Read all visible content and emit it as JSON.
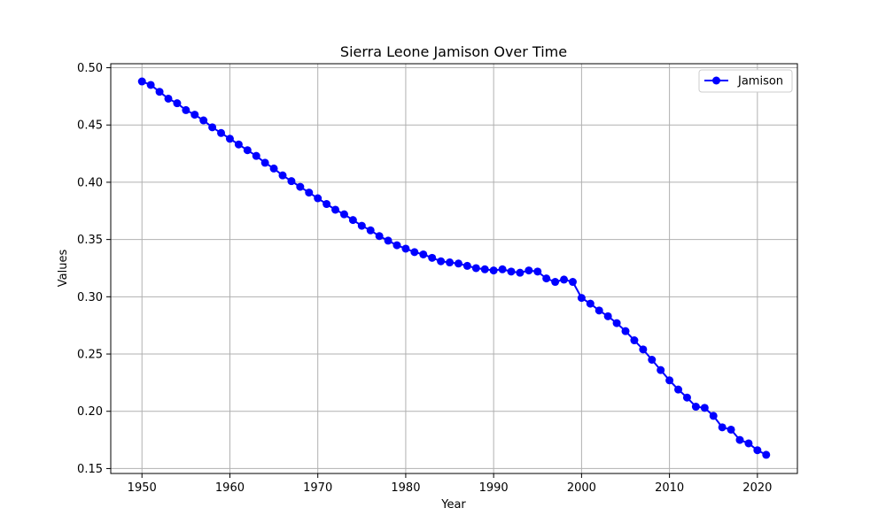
{
  "chart_data": {
    "type": "line",
    "title": "Sierra Leone Jamison Over Time",
    "xlabel": "Year",
    "ylabel": "Values",
    "xlim": [
      1946.45,
      2024.55
    ],
    "ylim": [
      0.1457,
      0.5035
    ],
    "xticks": [
      1950,
      1960,
      1970,
      1980,
      1990,
      2000,
      2010,
      2020
    ],
    "yticks": [
      0.15,
      0.2,
      0.25,
      0.3,
      0.35,
      0.4,
      0.45,
      0.5
    ],
    "ytick_labels": [
      "0.15",
      "0.20",
      "0.25",
      "0.30",
      "0.35",
      "0.40",
      "0.45",
      "0.50"
    ],
    "grid": true,
    "legend": {
      "position": "top-right",
      "entries": [
        "Jamison"
      ]
    },
    "series": [
      {
        "name": "Jamison",
        "color": "#0000ff",
        "marker": "circle",
        "x": [
          1950,
          1951,
          1952,
          1953,
          1954,
          1955,
          1956,
          1957,
          1958,
          1959,
          1960,
          1961,
          1962,
          1963,
          1964,
          1965,
          1966,
          1967,
          1968,
          1969,
          1970,
          1971,
          1972,
          1973,
          1974,
          1975,
          1976,
          1977,
          1978,
          1979,
          1980,
          1981,
          1982,
          1983,
          1984,
          1985,
          1986,
          1987,
          1988,
          1989,
          1990,
          1991,
          1992,
          1993,
          1994,
          1995,
          1996,
          1997,
          1998,
          1999,
          2000,
          2001,
          2002,
          2003,
          2004,
          2005,
          2006,
          2007,
          2008,
          2009,
          2010,
          2011,
          2012,
          2013,
          2014,
          2015,
          2016,
          2017,
          2018,
          2019,
          2020,
          2021
        ],
        "values": [
          0.488,
          0.485,
          0.479,
          0.473,
          0.469,
          0.463,
          0.459,
          0.454,
          0.448,
          0.443,
          0.438,
          0.433,
          0.428,
          0.423,
          0.417,
          0.412,
          0.406,
          0.401,
          0.396,
          0.391,
          0.386,
          0.381,
          0.376,
          0.372,
          0.367,
          0.362,
          0.358,
          0.353,
          0.349,
          0.345,
          0.342,
          0.339,
          0.337,
          0.334,
          0.331,
          0.33,
          0.329,
          0.327,
          0.325,
          0.324,
          0.323,
          0.324,
          0.322,
          0.321,
          0.323,
          0.322,
          0.316,
          0.313,
          0.315,
          0.313,
          0.299,
          0.294,
          0.288,
          0.283,
          0.277,
          0.27,
          0.262,
          0.254,
          0.245,
          0.236,
          0.227,
          0.219,
          0.212,
          0.204,
          0.203,
          0.196,
          0.186,
          0.184,
          0.175,
          0.172,
          0.166,
          0.162
        ]
      }
    ]
  }
}
